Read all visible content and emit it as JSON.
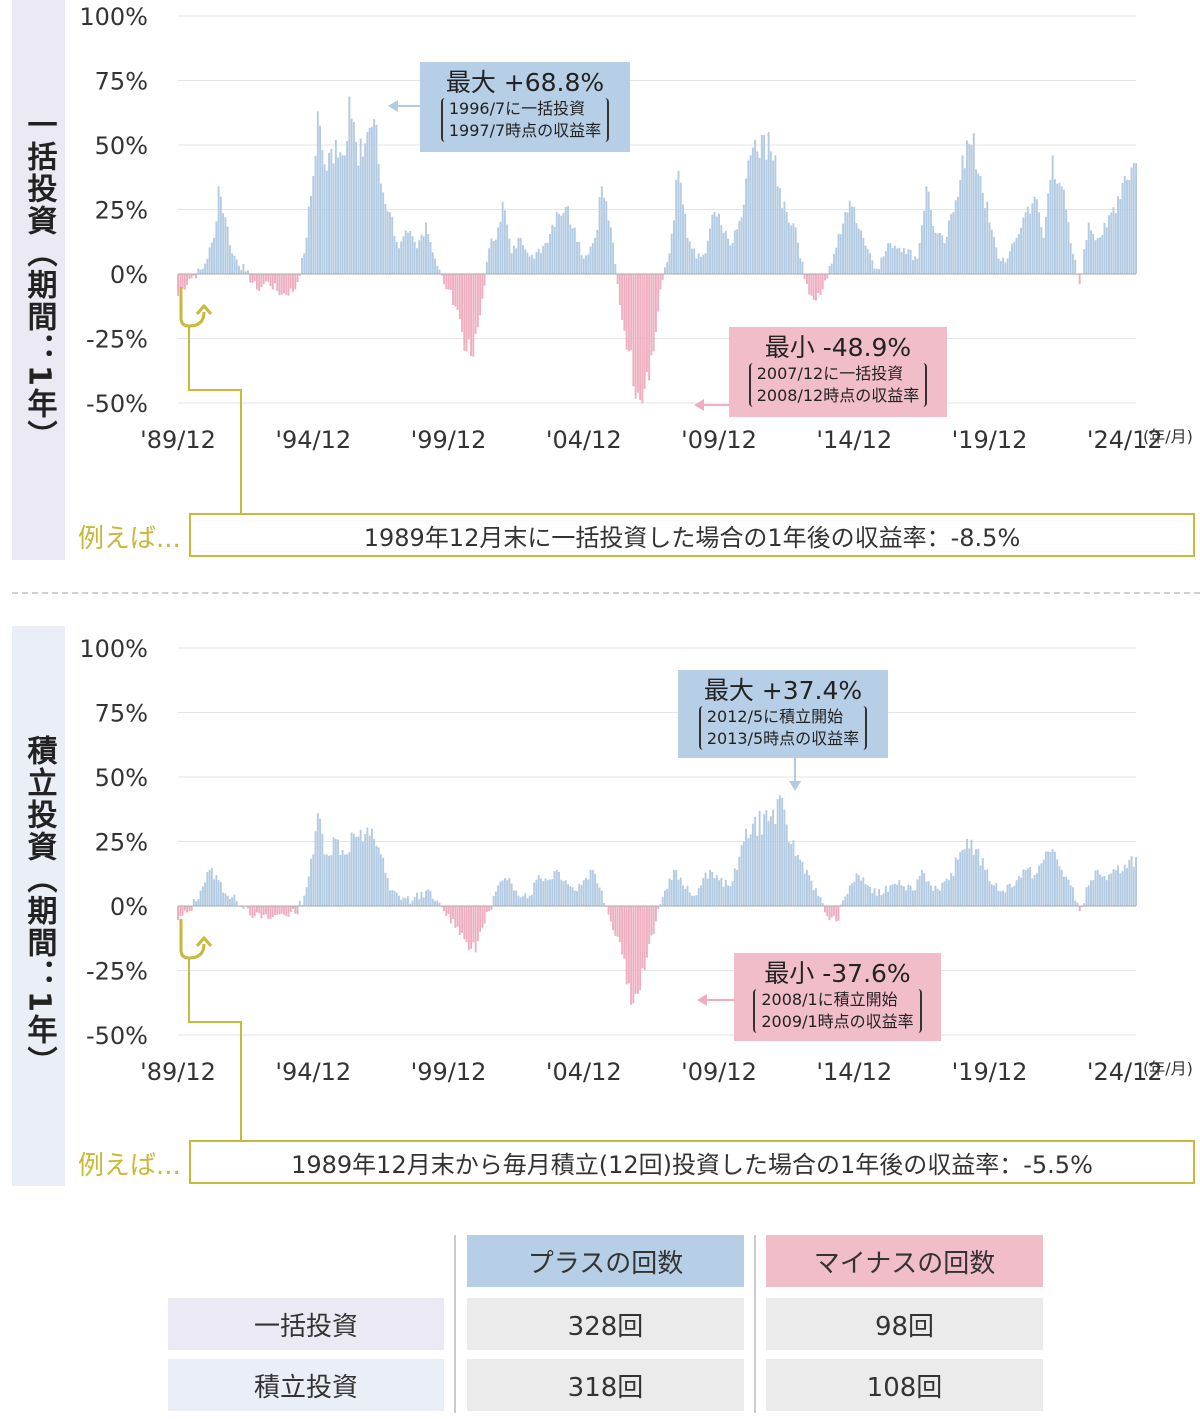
{
  "colors": {
    "plus": "#b3cbe2",
    "minus": "#eeaec0",
    "accent": "#c9b83a"
  },
  "chart_data": [
    {
      "type": "bar",
      "side_label": "一括投資（期間：1年）",
      "y_ticks": [
        "100%",
        "75%",
        "50%",
        "25%",
        "0%",
        "-25%",
        "-50%"
      ],
      "ylim": [
        -50,
        100
      ],
      "x_ticks": [
        "'89/12",
        "'94/12",
        "'99/12",
        "'04/12",
        "'09/12",
        "'14/12",
        "'19/12",
        "'24/12"
      ],
      "x_unit": "(年/月)",
      "x_range": [
        "1989/12",
        "2025/05"
      ],
      "seed": 7,
      "anchors": [
        [
          0,
          -8.5
        ],
        [
          5,
          -2
        ],
        [
          11,
          2
        ],
        [
          16,
          14
        ],
        [
          18,
          34
        ],
        [
          21,
          22
        ],
        [
          24,
          8
        ],
        [
          30,
          1
        ],
        [
          35,
          -6
        ],
        [
          40,
          -3
        ],
        [
          46,
          -8
        ],
        [
          52,
          -6
        ],
        [
          56,
          8
        ],
        [
          60,
          38
        ],
        [
          62,
          63
        ],
        [
          64,
          48
        ],
        [
          66,
          40
        ],
        [
          70,
          52
        ],
        [
          73,
          46
        ],
        [
          76,
          68.8
        ],
        [
          80,
          42
        ],
        [
          84,
          55
        ],
        [
          87,
          60
        ],
        [
          90,
          35
        ],
        [
          94,
          24
        ],
        [
          98,
          10
        ],
        [
          102,
          16
        ],
        [
          106,
          10
        ],
        [
          110,
          20
        ],
        [
          114,
          6
        ],
        [
          118,
          -4
        ],
        [
          120,
          -6
        ],
        [
          124,
          -14
        ],
        [
          128,
          -30
        ],
        [
          131,
          -32
        ],
        [
          134,
          -16
        ],
        [
          138,
          10
        ],
        [
          142,
          18
        ],
        [
          144,
          28
        ],
        [
          148,
          8
        ],
        [
          152,
          14
        ],
        [
          158,
          6
        ],
        [
          163,
          12
        ],
        [
          168,
          24
        ],
        [
          172,
          26
        ],
        [
          176,
          18
        ],
        [
          180,
          6
        ],
        [
          185,
          14
        ],
        [
          188,
          34
        ],
        [
          192,
          18
        ],
        [
          196,
          -12
        ],
        [
          200,
          -30
        ],
        [
          204,
          -46
        ],
        [
          205,
          -48.9
        ],
        [
          208,
          -38
        ],
        [
          211,
          -30
        ],
        [
          214,
          -6
        ],
        [
          218,
          8
        ],
        [
          222,
          40
        ],
        [
          226,
          14
        ],
        [
          230,
          6
        ],
        [
          234,
          8
        ],
        [
          238,
          24
        ],
        [
          242,
          16
        ],
        [
          246,
          12
        ],
        [
          250,
          22
        ],
        [
          254,
          46
        ],
        [
          256,
          52
        ],
        [
          258,
          45
        ],
        [
          262,
          55
        ],
        [
          266,
          34
        ],
        [
          270,
          24
        ],
        [
          274,
          18
        ],
        [
          278,
          -2
        ],
        [
          282,
          -10
        ],
        [
          286,
          -6
        ],
        [
          290,
          4
        ],
        [
          296,
          24
        ],
        [
          300,
          26
        ],
        [
          304,
          14
        ],
        [
          310,
          2
        ],
        [
          316,
          12
        ],
        [
          322,
          10
        ],
        [
          328,
          6
        ],
        [
          332,
          34
        ],
        [
          336,
          16
        ],
        [
          340,
          12
        ],
        [
          344,
          24
        ],
        [
          348,
          46
        ],
        [
          352,
          50
        ],
        [
          356,
          38
        ],
        [
          360,
          20
        ],
        [
          364,
          6
        ],
        [
          368,
          6
        ],
        [
          372,
          14
        ],
        [
          376,
          24
        ],
        [
          380,
          30
        ],
        [
          384,
          14
        ],
        [
          388,
          46
        ],
        [
          392,
          34
        ],
        [
          396,
          12
        ],
        [
          400,
          -4
        ],
        [
          404,
          20
        ],
        [
          408,
          14
        ],
        [
          412,
          18
        ],
        [
          420,
          38
        ],
        [
          425,
          43
        ]
      ]
    },
    {
      "type": "bar",
      "side_label": "積立投資（期間：1年）",
      "y_ticks": [
        "100%",
        "75%",
        "50%",
        "25%",
        "0%",
        "-25%",
        "-50%"
      ],
      "ylim": [
        -50,
        100
      ],
      "x_ticks": [
        "'89/12",
        "'94/12",
        "'99/12",
        "'04/12",
        "'09/12",
        "'14/12",
        "'19/12",
        "'24/12"
      ],
      "x_unit": "(年/月)",
      "x_range": [
        "1989/12",
        "2025/05"
      ],
      "seed": 13,
      "anchors": [
        [
          0,
          -5.5
        ],
        [
          5,
          -2
        ],
        [
          10,
          6
        ],
        [
          14,
          14
        ],
        [
          18,
          10
        ],
        [
          22,
          4
        ],
        [
          26,
          2
        ],
        [
          30,
          0
        ],
        [
          34,
          -4
        ],
        [
          40,
          -5
        ],
        [
          46,
          -3
        ],
        [
          52,
          -3
        ],
        [
          56,
          4
        ],
        [
          60,
          20
        ],
        [
          62,
          36
        ],
        [
          64,
          28
        ],
        [
          66,
          20
        ],
        [
          70,
          26
        ],
        [
          74,
          20
        ],
        [
          78,
          28
        ],
        [
          82,
          25
        ],
        [
          86,
          30
        ],
        [
          90,
          20
        ],
        [
          94,
          6
        ],
        [
          98,
          4
        ],
        [
          104,
          2
        ],
        [
          110,
          6
        ],
        [
          114,
          2
        ],
        [
          118,
          -2
        ],
        [
          124,
          -8
        ],
        [
          128,
          -14
        ],
        [
          132,
          -18
        ],
        [
          134,
          -10
        ],
        [
          138,
          -2
        ],
        [
          142,
          8
        ],
        [
          146,
          10
        ],
        [
          150,
          6
        ],
        [
          156,
          4
        ],
        [
          160,
          12
        ],
        [
          164,
          10
        ],
        [
          168,
          14
        ],
        [
          172,
          10
        ],
        [
          176,
          6
        ],
        [
          180,
          10
        ],
        [
          184,
          14
        ],
        [
          188,
          6
        ],
        [
          192,
          -6
        ],
        [
          196,
          -14
        ],
        [
          200,
          -30
        ],
        [
          202,
          -37.6
        ],
        [
          204,
          -34
        ],
        [
          208,
          -20
        ],
        [
          212,
          -6
        ],
        [
          216,
          6
        ],
        [
          220,
          14
        ],
        [
          224,
          8
        ],
        [
          228,
          4
        ],
        [
          232,
          8
        ],
        [
          236,
          14
        ],
        [
          240,
          10
        ],
        [
          244,
          8
        ],
        [
          248,
          14
        ],
        [
          252,
          30
        ],
        [
          269,
          37.4
        ],
        [
          272,
          24
        ],
        [
          276,
          18
        ],
        [
          280,
          12
        ],
        [
          284,
          4
        ],
        [
          288,
          -4
        ],
        [
          292,
          -6
        ],
        [
          298,
          8
        ],
        [
          302,
          12
        ],
        [
          306,
          8
        ],
        [
          310,
          4
        ],
        [
          316,
          8
        ],
        [
          320,
          10
        ],
        [
          326,
          6
        ],
        [
          330,
          14
        ],
        [
          334,
          8
        ],
        [
          338,
          6
        ],
        [
          342,
          10
        ],
        [
          346,
          18
        ],
        [
          350,
          26
        ],
        [
          354,
          22
        ],
        [
          358,
          14
        ],
        [
          362,
          8
        ],
        [
          366,
          6
        ],
        [
          372,
          10
        ],
        [
          376,
          14
        ],
        [
          380,
          12
        ],
        [
          384,
          18
        ],
        [
          388,
          22
        ],
        [
          392,
          14
        ],
        [
          396,
          8
        ],
        [
          400,
          -2
        ],
        [
          404,
          8
        ],
        [
          408,
          14
        ],
        [
          412,
          10
        ],
        [
          420,
          16
        ],
        [
          425,
          19
        ]
      ]
    }
  ],
  "chart1": {
    "max_callout": {
      "title": "最大 +68.8%",
      "line1": "1996/7に一括投資",
      "line2": "1997/7時点の収益率"
    },
    "min_callout": {
      "title": "最小 -48.9%",
      "line1": "2007/12に一括投資",
      "line2": "2008/12時点の収益率"
    },
    "example_label": "例えば...",
    "example_text": "1989年12月末に一括投資した場合の1年後の収益率：-8.5%"
  },
  "chart2": {
    "max_callout": {
      "title": "最大 +37.4%",
      "line1": "2012/5に積立開始",
      "line2": "2013/5時点の収益率"
    },
    "min_callout": {
      "title": "最小 -37.6%",
      "line1": "2008/1に積立開始",
      "line2": "2009/1時点の収益率"
    },
    "example_label": "例えば...",
    "example_text": "1989年12月末から毎月積立(12回)投資した場合の1年後の収益率：-5.5%"
  },
  "table": {
    "col_plus": "プラスの回数",
    "col_minus": "マイナスの回数",
    "rows": [
      {
        "label": "一括投資",
        "plus": "328回",
        "minus": "98回"
      },
      {
        "label": "積立投資",
        "plus": "318回",
        "minus": "108回"
      }
    ]
  }
}
